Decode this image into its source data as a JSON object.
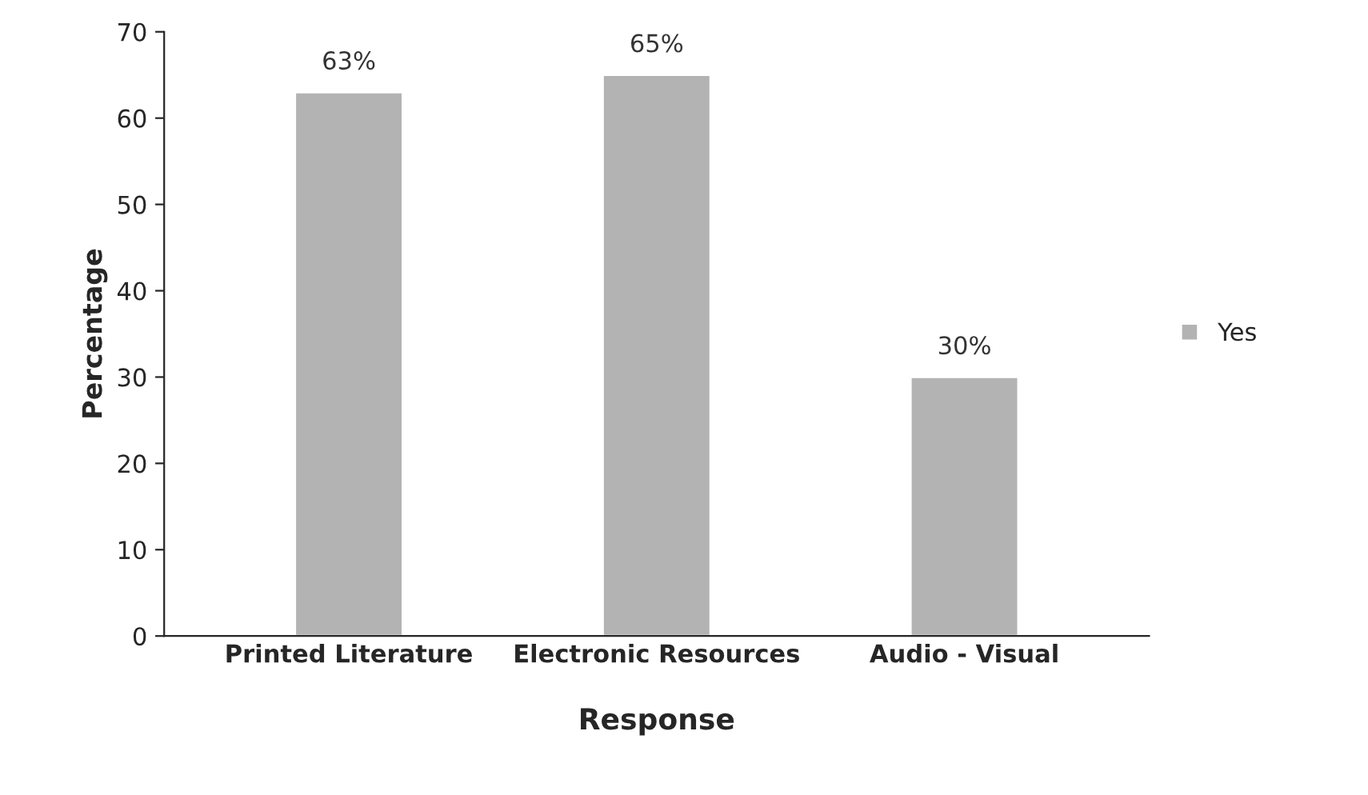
{
  "chart_data": {
    "type": "bar",
    "xlabel": "Response",
    "ylabel": "Percentage",
    "categories": [
      "Printed Literature",
      "Electronic Resources",
      "Audio - Visual"
    ],
    "series": [
      {
        "name": "Yes",
        "color": "#b3b3b3",
        "values": [
          63,
          65,
          30
        ],
        "value_labels": [
          "63%",
          "65%",
          "30%"
        ]
      }
    ],
    "ylim": [
      0,
      70
    ],
    "yticks": [
      0,
      10,
      20,
      30,
      40,
      50,
      60,
      70
    ],
    "grid": false,
    "legend": "right"
  }
}
